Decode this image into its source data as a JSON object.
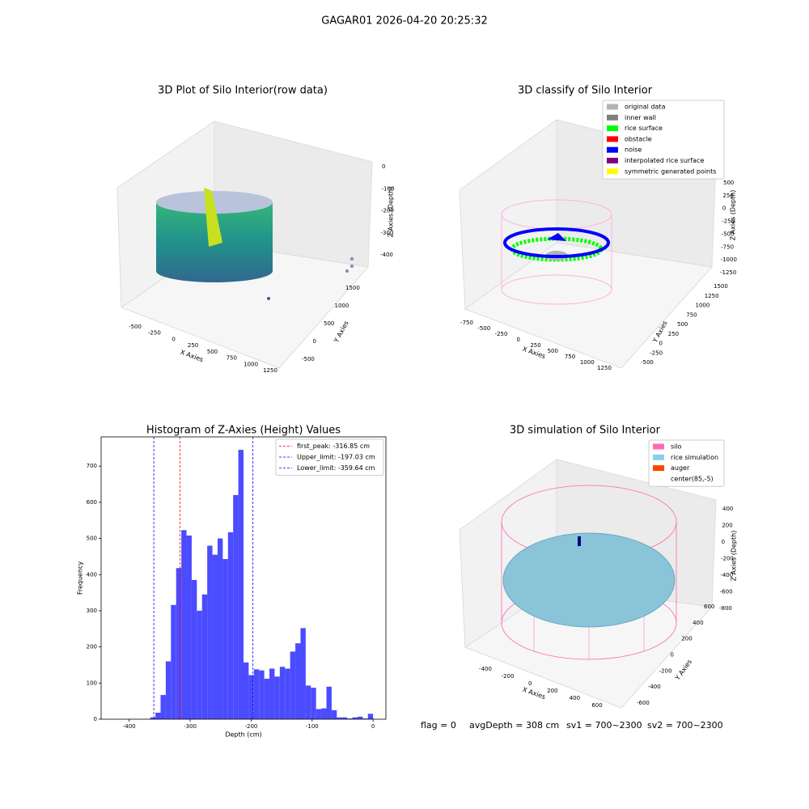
{
  "title": "GAGAR01 2026-04-20 20:25:32",
  "chart_data": [
    {
      "type": "scatter3d",
      "title": "3D Plot of Silo Interior(row data)",
      "xlabel": "X Axies",
      "ylabel": "Y Axies",
      "zlabel": "Z Axies (Depth)",
      "xticks": [
        -500,
        -250,
        0,
        250,
        500,
        750,
        1000,
        1250
      ],
      "yticks": [
        -500,
        0,
        500,
        1000,
        1500
      ],
      "zticks": [
        0,
        -100,
        -200,
        -300,
        -400
      ]
    },
    {
      "type": "scatter3d",
      "title": "3D classify of Silo Interior",
      "xlabel": "X Axies",
      "ylabel": "Y Axies",
      "zlabel": "Z Axies (Depth)",
      "xticks": [
        -750,
        -500,
        -250,
        0,
        250,
        500,
        750,
        1000,
        1250
      ],
      "yticks": [
        -500,
        -250,
        0,
        250,
        500,
        750,
        1000,
        1250,
        1500
      ],
      "zticks": [
        500,
        250,
        0,
        -250,
        -500,
        -750,
        -1000,
        -1250
      ],
      "legend": [
        {
          "name": "original data",
          "color": "#b3b3b3"
        },
        {
          "name": "inner wall",
          "color": "#808080"
        },
        {
          "name": "rice surface",
          "color": "#00ff00"
        },
        {
          "name": "obstacle",
          "color": "#ff0000"
        },
        {
          "name": "noise",
          "color": "#0000ff"
        },
        {
          "name": "interpolated rice surface",
          "color": "#800080"
        },
        {
          "name": "symmetric generated points",
          "color": "#ffff00"
        }
      ]
    },
    {
      "type": "histogram",
      "title": "Histogram of Z-Axies (Height) Values",
      "xlabel": "Depth (cm)",
      "ylabel": "Frequency",
      "color": "#4b4bff",
      "bins": [
        -365.5,
        -357,
        -348.5,
        -340,
        -331.5,
        -323,
        -314.5,
        -306,
        -297.5,
        -289,
        -280.5,
        -272,
        -263.5,
        -255,
        -246.5,
        -238,
        -229.5,
        -221,
        -212.5,
        -204,
        -195.5,
        -187,
        -178.5,
        -170,
        -161.5,
        -153,
        -144.5,
        -136,
        -127.5,
        -119,
        -110.5,
        -102,
        -93.5,
        -85,
        -76.5,
        -68,
        -59.5,
        -51,
        -42.5,
        -34,
        -25.5,
        -17,
        -8.5,
        0
      ],
      "values": [
        5,
        18,
        67,
        160,
        316,
        418,
        523,
        508,
        385,
        300,
        345,
        480,
        455,
        500,
        443,
        517,
        620,
        745,
        157,
        122,
        138,
        135,
        112,
        140,
        118,
        145,
        140,
        187,
        210,
        252,
        93,
        87,
        28,
        30,
        90,
        25,
        5,
        5,
        2,
        5,
        7,
        2,
        15
      ],
      "xlim": [
        -446,
        21
      ],
      "ylim": [
        0,
        781
      ],
      "xticks": [
        -400,
        -300,
        -200,
        -100,
        0
      ],
      "yticks": [
        0,
        100,
        200,
        300,
        400,
        500,
        600,
        700
      ],
      "vlines": [
        {
          "name": "first_peak: -316.85 cm",
          "value": -316.85,
          "color": "#ff0000"
        },
        {
          "name": "Upper_limit: -197.03 cm",
          "value": -197.03,
          "color": "#0000ff"
        },
        {
          "name": "Lower_limit: -359.64 cm",
          "value": -359.64,
          "color": "#0000ff"
        }
      ],
      "legend_loc": "upper right"
    },
    {
      "type": "scatter3d",
      "title": "3D simulation of Silo Interior",
      "xlabel": "X Axies",
      "ylabel": "Y Axies",
      "zlabel": "Z Axies (Depth)",
      "xticks": [
        -400,
        -200,
        0,
        200,
        400,
        600
      ],
      "yticks": [
        -600,
        -400,
        -200,
        0,
        200,
        400,
        600
      ],
      "zticks": [
        400,
        200,
        0,
        -200,
        -400,
        -600,
        -800
      ],
      "legend": [
        {
          "name": "silo",
          "color": "#ff69b4"
        },
        {
          "name": "rice simulation",
          "color": "#87ceeb"
        },
        {
          "name": "auger",
          "color": "#ff4500"
        },
        {
          "name": "center(85,-5)",
          "color": "#ffffff"
        }
      ]
    }
  ],
  "footer": [
    "flag = 0",
    "avgDepth = 308 cm",
    "sv1 = 700~2300",
    "sv2 = 700~2300"
  ]
}
